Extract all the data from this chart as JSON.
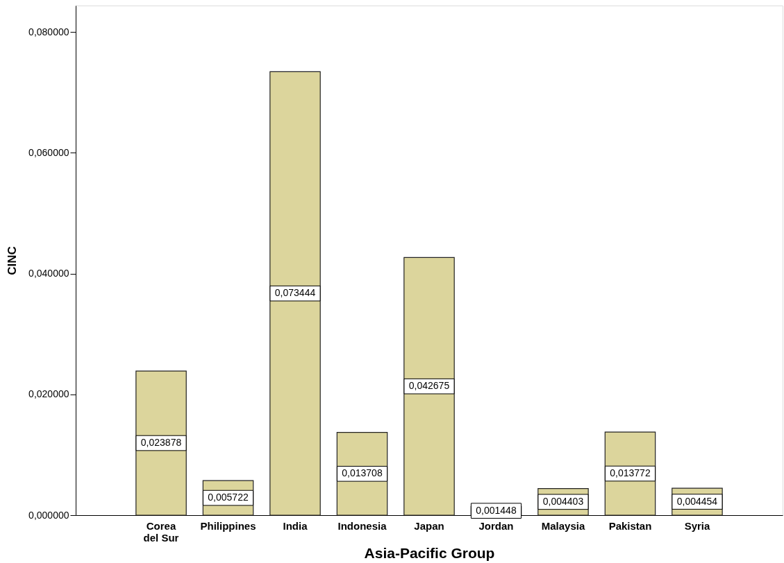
{
  "chart_data": {
    "type": "bar",
    "xlabel": "Asia-Pacific Group",
    "ylabel": "CINC",
    "categories": [
      "Corea\ndel Sur",
      "Philippines",
      "India",
      "Indonesia",
      "Japan",
      "Jordan",
      "Malaysia",
      "Pakistan",
      "Syria"
    ],
    "values": [
      0.023878,
      0.005722,
      0.073444,
      0.013708,
      0.042675,
      0.001448,
      0.004403,
      0.013772,
      0.004454
    ],
    "value_labels": [
      "0,023878",
      "0,005722",
      "0,073444",
      "0,013708",
      "0,042675",
      "0,001448",
      "0,004403",
      "0,013772",
      "0,004454"
    ],
    "color": "#dcd59c",
    "ylim": [
      0,
      0.0844
    ],
    "yticks": [
      {
        "value": 0,
        "label": "0,000000"
      },
      {
        "value": 0.02,
        "label": "0,020000"
      },
      {
        "value": 0.04,
        "label": "0,040000"
      },
      {
        "value": 0.06,
        "label": "0,060000"
      },
      {
        "value": 0.08,
        "label": "0,080000"
      }
    ],
    "grid": false
  }
}
